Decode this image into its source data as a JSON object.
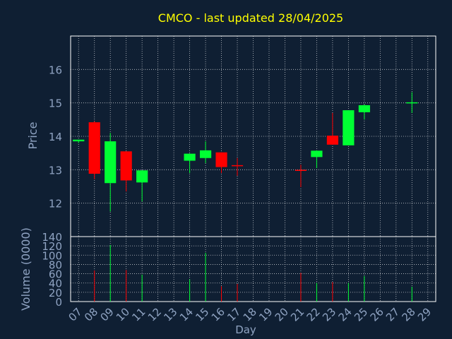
{
  "chart_data": {
    "type": "candlestick",
    "title": "CMCO - last updated 28/04/2025",
    "xlabel": "Day",
    "ylabel_price": "Price",
    "ylabel_volume": "Volume (0000)",
    "x_ticks": [
      "07",
      "08",
      "09",
      "10",
      "11",
      "12",
      "13",
      "14",
      "15",
      "16",
      "17",
      "18",
      "19",
      "20",
      "21",
      "22",
      "23",
      "24",
      "25",
      "26",
      "27",
      "28",
      "29"
    ],
    "price_ylim": [
      11.0,
      17.0
    ],
    "price_ticks": [
      12,
      13,
      14,
      15,
      16
    ],
    "volume_ylim": [
      0,
      140
    ],
    "volume_ticks": [
      0,
      20,
      40,
      60,
      80,
      100,
      120,
      140
    ],
    "grid": true,
    "colors": {
      "up": "#00ff33",
      "down": "#ff0000",
      "neutral": "#ff0000",
      "title": "#ffff00",
      "axis_text": "#8fa3c2",
      "grid": "#ffffff",
      "background": "#0f1f33"
    },
    "candles": [
      {
        "day": "07",
        "open": 13.85,
        "high": 13.9,
        "low": 13.8,
        "close": 13.9,
        "volume": 0
      },
      {
        "day": "08",
        "open": 14.42,
        "high": 14.45,
        "low": 12.72,
        "close": 12.88,
        "volume": 67
      },
      {
        "day": "09",
        "open": 12.6,
        "high": 14.1,
        "low": 11.75,
        "close": 13.85,
        "volume": 122
      },
      {
        "day": "10",
        "open": 13.55,
        "high": 13.55,
        "low": 12.35,
        "close": 12.68,
        "volume": 68
      },
      {
        "day": "11",
        "open": 12.62,
        "high": 12.98,
        "low": 12.05,
        "close": 12.98,
        "volume": 58
      },
      {
        "day": "14",
        "open": 13.27,
        "high": 13.48,
        "low": 12.9,
        "close": 13.48,
        "volume": 48
      },
      {
        "day": "15",
        "open": 13.35,
        "high": 13.85,
        "low": 13.2,
        "close": 13.58,
        "volume": 105
      },
      {
        "day": "16",
        "open": 13.52,
        "high": 13.52,
        "low": 12.9,
        "close": 13.08,
        "volume": 33
      },
      {
        "day": "17",
        "open": 13.12,
        "high": 13.35,
        "low": 12.82,
        "close": 13.12,
        "volume": 38
      },
      {
        "day": "21",
        "open": 12.98,
        "high": 13.15,
        "low": 12.48,
        "close": 12.98,
        "volume": 62
      },
      {
        "day": "22",
        "open": 13.38,
        "high": 13.58,
        "low": 13.05,
        "close": 13.57,
        "volume": 40
      },
      {
        "day": "23",
        "open": 14.02,
        "high": 14.7,
        "low": 13.75,
        "close": 13.75,
        "volume": 42
      },
      {
        "day": "24",
        "open": 13.73,
        "high": 14.78,
        "low": 13.73,
        "close": 14.78,
        "volume": 40
      },
      {
        "day": "25",
        "open": 14.72,
        "high": 14.95,
        "low": 14.5,
        "close": 14.93,
        "volume": 55
      },
      {
        "day": "28",
        "open": 14.98,
        "high": 15.32,
        "low": 14.7,
        "close": 15.0,
        "volume": 32
      }
    ]
  }
}
